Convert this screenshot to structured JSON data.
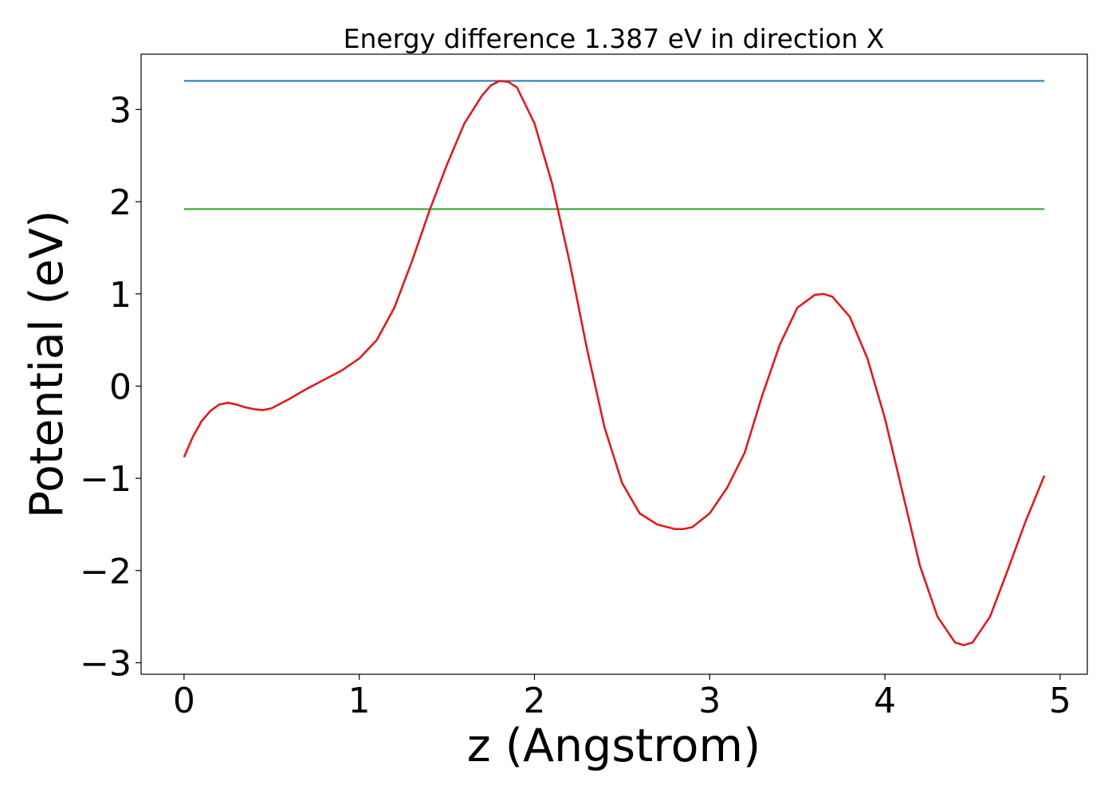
{
  "chart_data": {
    "type": "line",
    "title": "Energy difference 1.387 eV in direction X",
    "xlabel": "z (Angstrom)",
    "ylabel": "Potential (eV)",
    "xlim": [
      -0.245,
      5.155
    ],
    "ylim": [
      -3.125,
      3.6
    ],
    "xticks": [
      0,
      1,
      2,
      3,
      4,
      5
    ],
    "yticks": [
      -3,
      -2,
      -1,
      0,
      1,
      2,
      3
    ],
    "xtick_labels": [
      "0",
      "1",
      "2",
      "3",
      "4",
      "5"
    ],
    "ytick_labels": [
      "−3",
      "−2",
      "−1",
      "0",
      "1",
      "2",
      "3"
    ],
    "grid": false,
    "legend": "none",
    "series": [
      {
        "color": "#1f77b4",
        "style": "horizontal",
        "x": [
          0,
          4.91
        ],
        "y": [
          3.31,
          3.31
        ]
      },
      {
        "color": "#2ca02c",
        "style": "horizontal",
        "x": [
          0,
          4.91
        ],
        "y": [
          1.92,
          1.92
        ]
      },
      {
        "color": "#e31a1c",
        "style": "curve",
        "x": [
          0,
          0.05,
          0.1,
          0.15,
          0.2,
          0.25,
          0.3,
          0.35,
          0.4,
          0.45,
          0.5,
          0.6,
          0.7,
          0.8,
          0.9,
          1.0,
          1.1,
          1.2,
          1.3,
          1.4,
          1.5,
          1.6,
          1.7,
          1.75,
          1.8,
          1.85,
          1.9,
          2.0,
          2.1,
          2.2,
          2.3,
          2.4,
          2.5,
          2.6,
          2.7,
          2.8,
          2.85,
          2.9,
          3.0,
          3.1,
          3.2,
          3.3,
          3.4,
          3.5,
          3.6,
          3.65,
          3.7,
          3.8,
          3.9,
          4.0,
          4.1,
          4.2,
          4.3,
          4.4,
          4.45,
          4.5,
          4.6,
          4.7,
          4.8,
          4.91
        ],
        "y": [
          -0.77,
          -0.55,
          -0.38,
          -0.27,
          -0.2,
          -0.18,
          -0.2,
          -0.23,
          -0.25,
          -0.26,
          -0.24,
          -0.14,
          -0.03,
          0.07,
          0.17,
          0.3,
          0.5,
          0.85,
          1.35,
          1.9,
          2.4,
          2.85,
          3.15,
          3.26,
          3.31,
          3.3,
          3.24,
          2.85,
          2.2,
          1.35,
          0.4,
          -0.45,
          -1.05,
          -1.38,
          -1.5,
          -1.55,
          -1.55,
          -1.53,
          -1.38,
          -1.1,
          -0.72,
          -0.1,
          0.45,
          0.85,
          0.99,
          1.0,
          0.97,
          0.75,
          0.3,
          -0.35,
          -1.15,
          -1.95,
          -2.5,
          -2.78,
          -2.81,
          -2.78,
          -2.5,
          -2.0,
          -1.48,
          -0.97
        ]
      }
    ]
  }
}
